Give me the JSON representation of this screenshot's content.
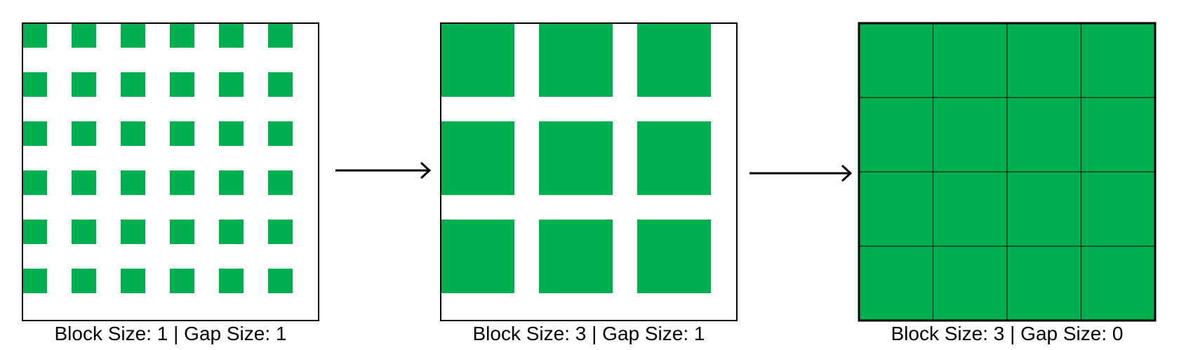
{
  "colors": {
    "block": "#00AF50",
    "frame": "#000000",
    "background": "#FFFFFF"
  },
  "panels": [
    {
      "id": "panel-1",
      "caption": "Block Size: 1 | Gap Size: 1",
      "grid": {
        "rows": 6,
        "cols": 6,
        "block": 1,
        "gap": 1
      }
    },
    {
      "id": "panel-2",
      "caption": "Block Size: 3 | Gap Size: 1",
      "grid": {
        "rows": 3,
        "cols": 3,
        "block": 3,
        "gap": 1
      }
    },
    {
      "id": "panel-3",
      "caption": "Block Size: 3 | Gap Size: 0",
      "grid": {
        "rows": 4,
        "cols": 4,
        "block": 3,
        "gap": 0
      }
    }
  ],
  "arrows": [
    {
      "id": "arrow-1",
      "from": "panel-1",
      "to": "panel-2"
    },
    {
      "id": "arrow-2",
      "from": "panel-2",
      "to": "panel-3"
    }
  ]
}
